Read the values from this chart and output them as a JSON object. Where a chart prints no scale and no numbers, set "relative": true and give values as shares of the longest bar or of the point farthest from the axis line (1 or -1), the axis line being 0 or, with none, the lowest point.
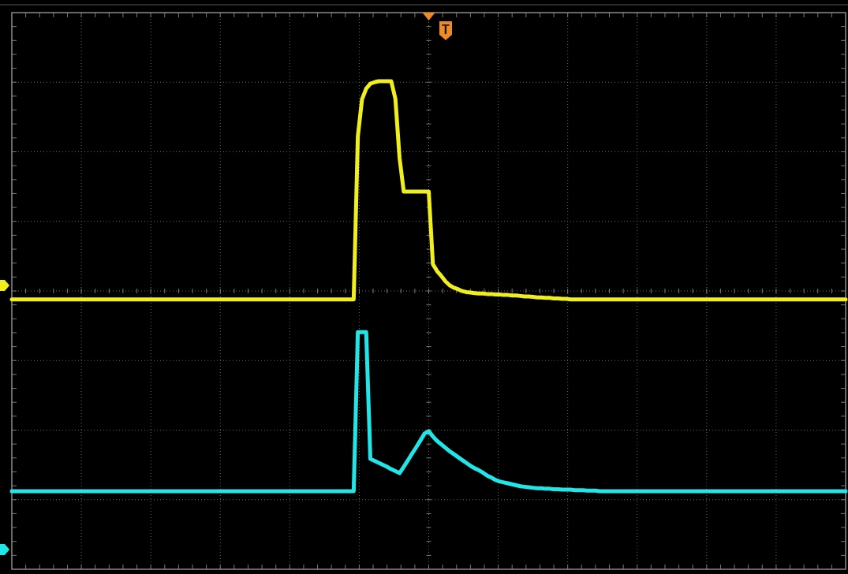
{
  "chart_data": {
    "type": "line",
    "relative": true,
    "grid": true,
    "annotations": [
      "T"
    ],
    "categories": [
      null,
      null,
      null,
      null,
      null,
      null,
      null,
      null,
      null,
      null,
      null,
      null,
      null,
      null,
      null,
      null,
      null,
      null,
      null,
      null,
      null,
      null,
      null,
      null,
      null,
      null,
      null,
      null,
      null,
      null,
      null,
      null,
      null,
      null,
      null,
      null,
      null,
      null,
      null,
      null,
      null,
      null,
      null,
      null,
      null,
      null,
      null,
      null,
      null,
      null,
      null,
      null,
      null,
      null,
      null,
      null,
      null,
      null,
      null,
      null,
      null,
      null,
      null,
      null,
      null,
      null,
      null,
      null,
      null,
      null,
      null,
      null,
      null,
      null,
      null,
      null,
      null,
      null,
      null,
      null,
      null,
      null,
      null,
      null,
      null,
      null,
      null,
      null,
      null,
      null,
      null,
      null,
      null,
      null,
      null,
      null,
      null,
      null,
      null,
      null,
      null,
      null,
      null,
      null,
      null,
      null,
      null,
      null,
      null,
      null,
      null,
      null,
      null,
      null,
      null,
      null,
      null,
      null,
      null,
      null,
      null,
      null,
      null,
      null,
      null,
      null,
      null,
      null,
      null,
      null,
      null,
      null,
      null,
      null,
      null,
      null,
      null,
      null,
      null,
      null,
      null,
      null,
      null,
      null,
      null,
      null,
      null,
      null,
      null,
      null,
      null,
      null,
      null,
      null,
      null,
      null,
      null,
      null,
      null,
      null,
      null,
      null,
      null,
      null,
      null,
      null,
      null,
      null,
      null,
      null,
      null,
      null,
      null,
      null,
      null,
      null,
      null,
      null,
      null,
      null,
      null,
      null,
      null,
      null,
      null,
      null,
      null,
      null,
      null,
      null,
      null,
      null,
      null,
      null,
      null,
      null,
      null,
      null,
      null,
      null,
      null
    ],
    "series": [
      {
        "color": "#f0ee1c",
        "values": [
          0.553,
          0.553,
          0.553,
          0.553,
          0.553,
          0.553,
          0.553,
          0.553,
          0.553,
          0.553,
          0.553,
          0.553,
          0.553,
          0.553,
          0.553,
          0.553,
          0.553,
          0.553,
          0.553,
          0.553,
          0.553,
          0.553,
          0.553,
          0.553,
          0.553,
          0.553,
          0.553,
          0.553,
          0.553,
          0.553,
          0.553,
          0.553,
          0.553,
          0.553,
          0.553,
          0.553,
          0.553,
          0.553,
          0.553,
          0.553,
          0.553,
          0.553,
          0.553,
          0.553,
          0.553,
          0.553,
          0.553,
          0.553,
          0.553,
          0.553,
          0.553,
          0.553,
          0.553,
          0.553,
          0.553,
          0.553,
          0.553,
          0.553,
          0.553,
          0.553,
          0.553,
          0.553,
          0.553,
          0.553,
          0.553,
          0.553,
          0.553,
          0.553,
          0.553,
          0.553,
          0.553,
          0.553,
          0.553,
          0.553,
          0.553,
          0.553,
          0.553,
          0.553,
          0.553,
          0.553,
          0.553,
          0.553,
          0.553,
          0.887,
          0.963,
          0.985,
          0.995,
          0.998,
          1,
          1,
          1,
          1,
          0.964,
          0.843,
          0.774,
          0.774,
          0.774,
          0.774,
          0.774,
          0.774,
          0.774,
          0.625,
          0.611,
          0.601,
          0.59,
          0.582,
          0.577,
          0.574,
          0.57,
          0.568,
          0.567,
          0.566,
          0.565,
          0.565,
          0.564,
          0.564,
          0.563,
          0.563,
          0.562,
          0.562,
          0.561,
          0.561,
          0.56,
          0.559,
          0.559,
          0.558,
          0.557,
          0.557,
          0.556,
          0.556,
          0.555,
          0.555,
          0.554,
          0.554,
          0.553,
          0.553,
          0.553,
          0.553,
          0.553,
          0.553,
          0.553,
          0.553,
          0.553,
          0.553,
          0.553,
          0.553,
          0.553,
          0.553,
          0.553,
          0.553,
          0.553,
          0.553,
          0.553,
          0.553,
          0.553,
          0.553,
          0.553,
          0.553,
          0.553,
          0.553,
          0.553,
          0.553,
          0.553,
          0.553,
          0.553,
          0.553,
          0.553,
          0.553,
          0.553,
          0.553,
          0.553,
          0.553,
          0.553,
          0.553,
          0.553,
          0.553,
          0.553,
          0.553,
          0.553,
          0.553,
          0.553,
          0.553,
          0.553,
          0.553,
          0.553,
          0.553,
          0.553,
          0.553,
          0.553,
          0.553,
          0.553,
          0.553,
          0.553,
          0.553,
          0.553,
          0.553,
          0.553,
          0.553,
          0.553,
          0.553,
          0.553
        ]
      },
      {
        "color": "#20e6e8",
        "values": [
          0.16,
          0.16,
          0.16,
          0.16,
          0.16,
          0.16,
          0.16,
          0.16,
          0.16,
          0.16,
          0.16,
          0.16,
          0.16,
          0.16,
          0.16,
          0.16,
          0.16,
          0.16,
          0.16,
          0.16,
          0.16,
          0.16,
          0.16,
          0.16,
          0.16,
          0.16,
          0.16,
          0.16,
          0.16,
          0.16,
          0.16,
          0.16,
          0.16,
          0.16,
          0.16,
          0.16,
          0.16,
          0.16,
          0.16,
          0.16,
          0.16,
          0.16,
          0.16,
          0.16,
          0.16,
          0.16,
          0.16,
          0.16,
          0.16,
          0.16,
          0.16,
          0.16,
          0.16,
          0.16,
          0.16,
          0.16,
          0.16,
          0.16,
          0.16,
          0.16,
          0.16,
          0.16,
          0.16,
          0.16,
          0.16,
          0.16,
          0.16,
          0.16,
          0.16,
          0.16,
          0.16,
          0.16,
          0.16,
          0.16,
          0.16,
          0.16,
          0.16,
          0.16,
          0.16,
          0.16,
          0.16,
          0.16,
          0.16,
          0.486,
          0.486,
          0.486,
          0.226,
          0.222,
          0.218,
          0.214,
          0.21,
          0.205,
          0.201,
          0.197,
          0.21,
          0.223,
          0.237,
          0.25,
          0.264,
          0.278,
          0.283,
          0.272,
          0.263,
          0.256,
          0.249,
          0.242,
          0.236,
          0.23,
          0.224,
          0.218,
          0.212,
          0.207,
          0.203,
          0.198,
          0.192,
          0.188,
          0.183,
          0.18,
          0.178,
          0.176,
          0.174,
          0.172,
          0.17,
          0.169,
          0.168,
          0.167,
          0.166,
          0.166,
          0.165,
          0.165,
          0.164,
          0.164,
          0.163,
          0.163,
          0.163,
          0.162,
          0.162,
          0.162,
          0.161,
          0.161,
          0.161,
          0.16,
          0.16,
          0.16,
          0.16,
          0.16,
          0.16,
          0.16,
          0.16,
          0.16,
          0.16,
          0.16,
          0.16,
          0.16,
          0.16,
          0.16,
          0.16,
          0.16,
          0.16,
          0.16,
          0.16,
          0.16,
          0.16,
          0.16,
          0.16,
          0.16,
          0.16,
          0.16,
          0.16,
          0.16,
          0.16,
          0.16,
          0.16,
          0.16,
          0.16,
          0.16,
          0.16,
          0.16,
          0.16,
          0.16,
          0.16,
          0.16,
          0.16,
          0.16,
          0.16,
          0.16,
          0.16,
          0.16,
          0.16,
          0.16,
          0.16,
          0.16,
          0.16,
          0.16,
          0.16,
          0.16,
          0.16,
          0.16,
          0.16,
          0.16,
          0.16
        ]
      }
    ]
  }
}
